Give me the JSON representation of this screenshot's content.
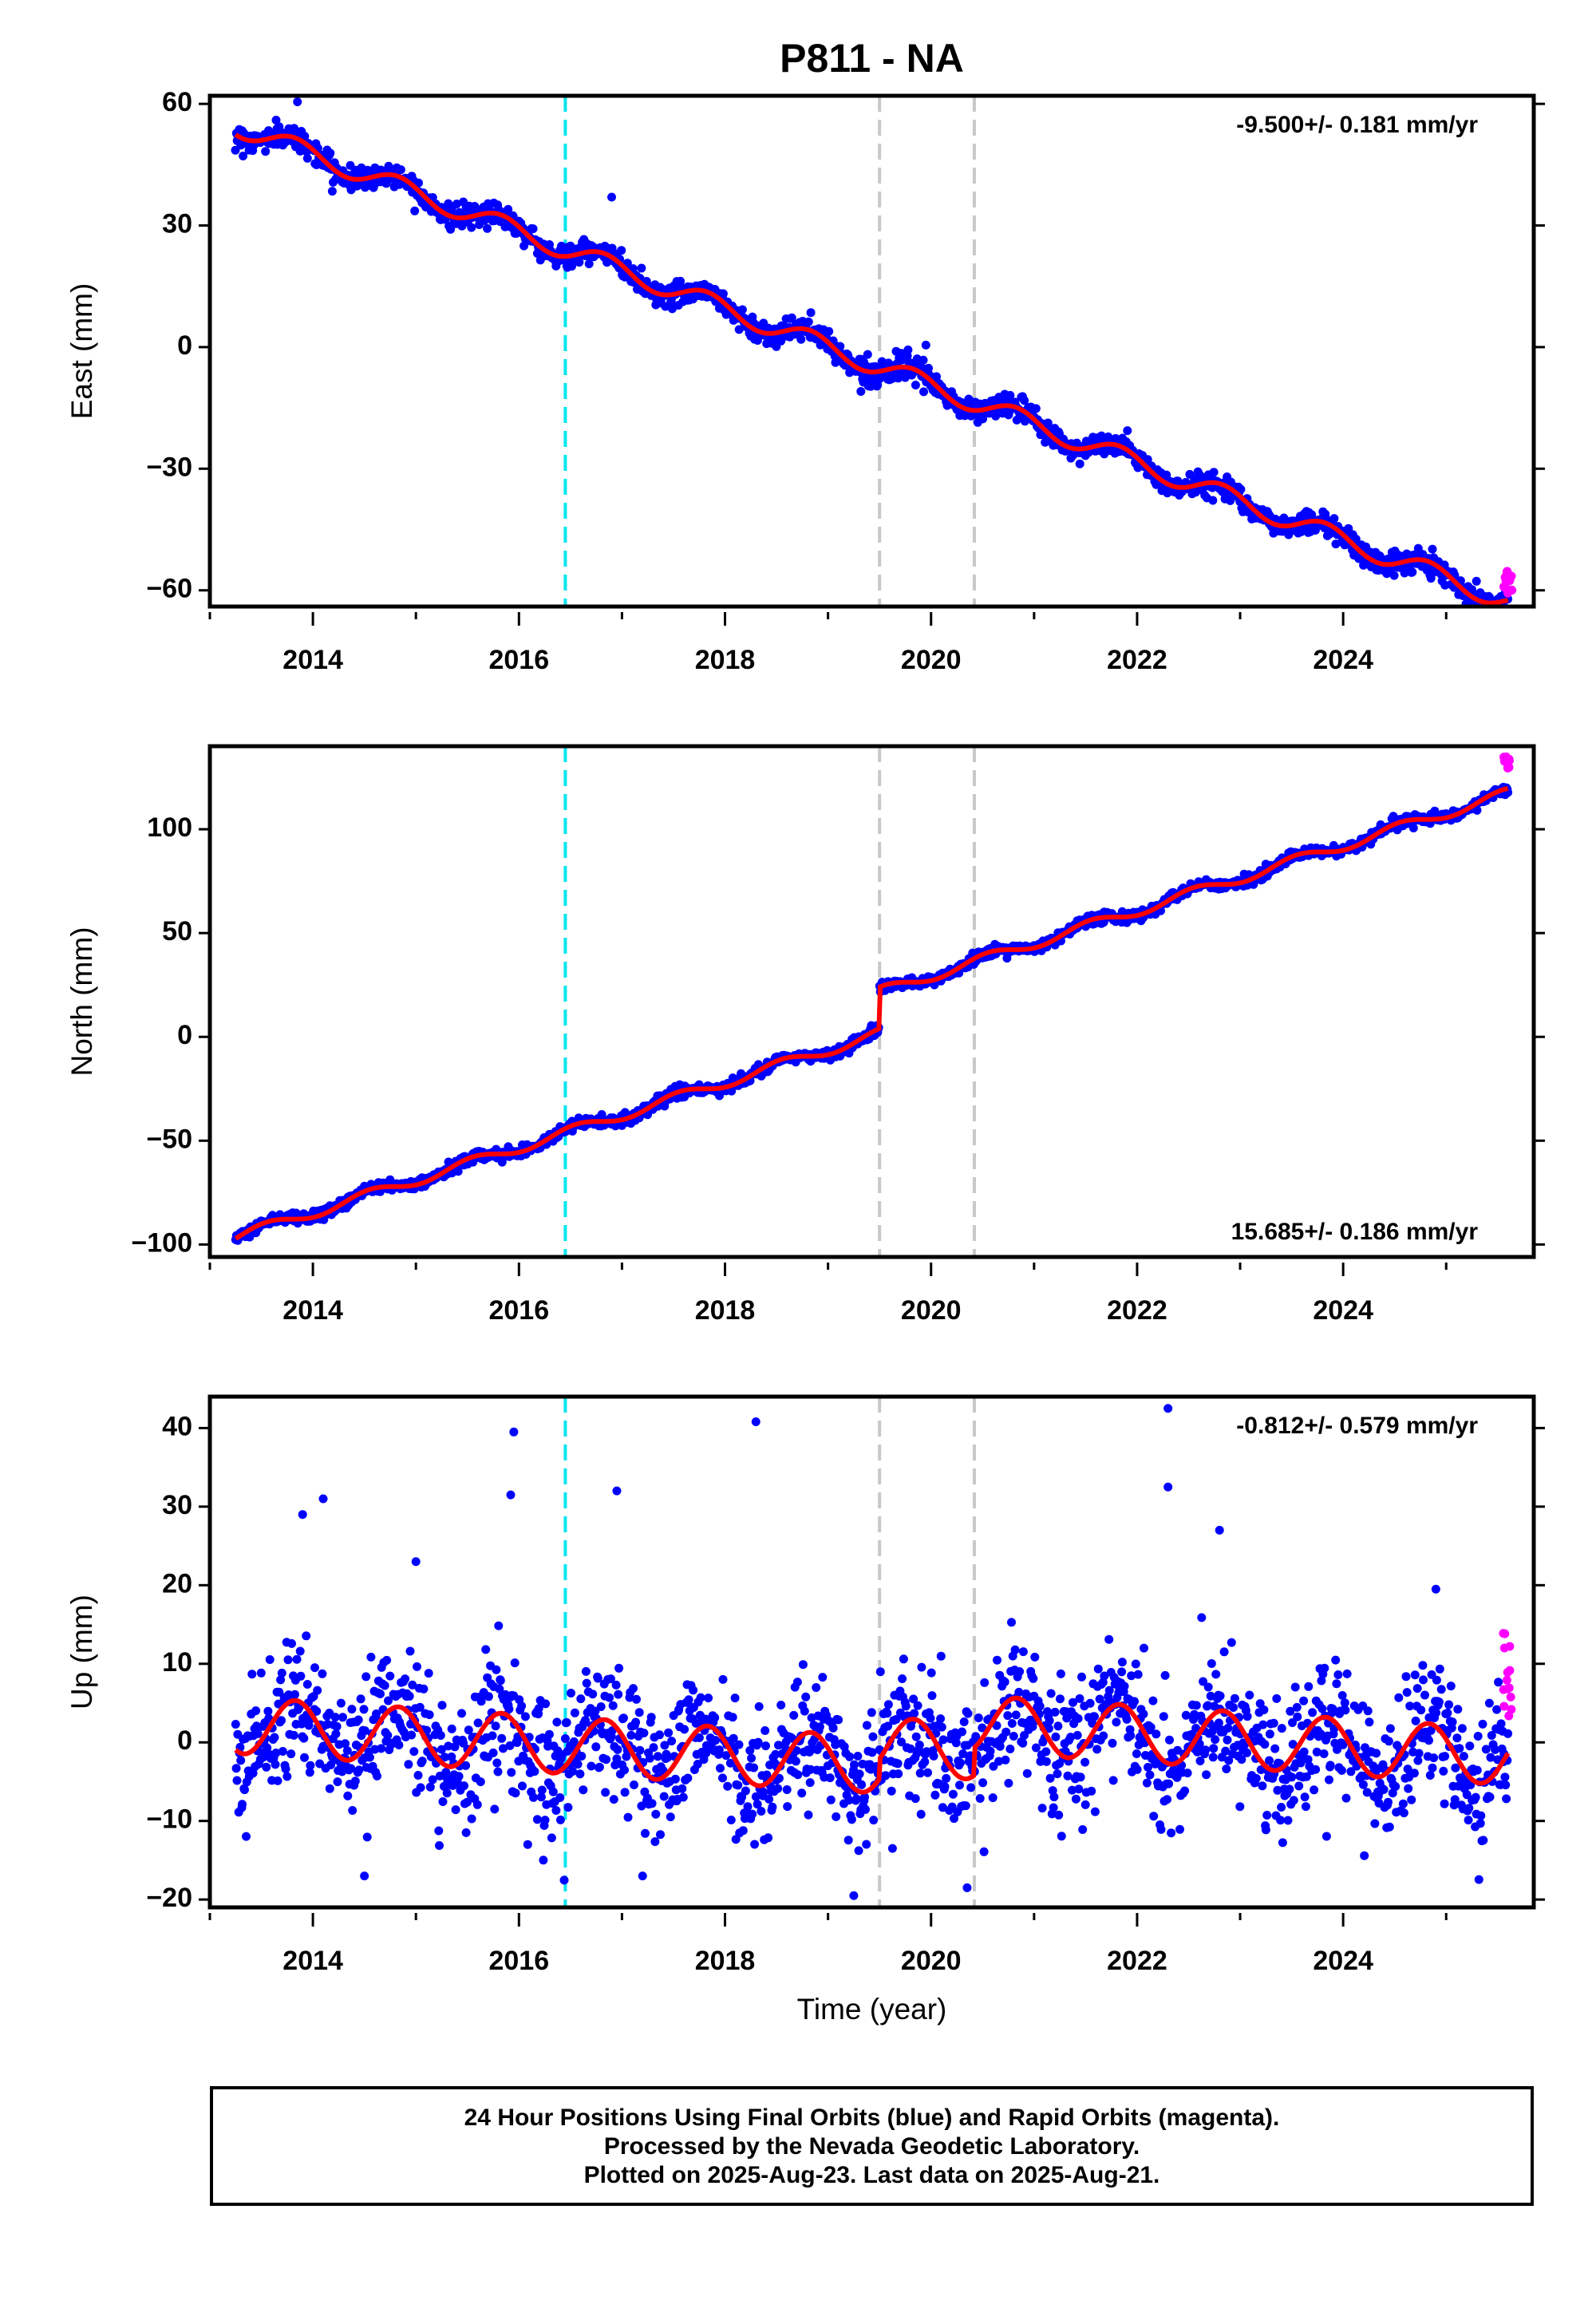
{
  "title": "P811 - NA",
  "colors": {
    "final_orbits": "#0000ff",
    "rapid_orbits": "#ff00ff",
    "model": "#ff0000",
    "event_cyan": "#00e5ee",
    "event_gray": "#c8c8c8"
  },
  "footer": {
    "line1": "24 Hour Positions Using Final Orbits (blue) and Rapid Orbits (magenta).",
    "line2": "Processed by the Nevada Geodetic Laboratory.",
    "line3": "Plotted on 2025-Aug-23. Last data on 2025-Aug-21."
  },
  "chart_data": [
    {
      "type": "scatter",
      "component": "east",
      "ylabel": "East (mm)",
      "xlabel": "",
      "rate_label": "-9.500+/- 0.181 mm/yr",
      "rate_position": "top-right",
      "xlim": [
        2013.0,
        2025.85
      ],
      "ylim": [
        -64,
        62
      ],
      "xticks": [
        2014,
        2016,
        2018,
        2020,
        2022,
        2024
      ],
      "xtick_labels": [
        "2014",
        "2016",
        "2018",
        "2020",
        "2022",
        "2024"
      ],
      "yticks": [
        60,
        30,
        0,
        -30,
        -60
      ],
      "ytick_labels": [
        "60",
        "30",
        "0",
        "−30",
        "−60"
      ],
      "grid": false,
      "events": [
        {
          "x": 2016.45,
          "color": "cyan"
        },
        {
          "x": 2019.5,
          "color": "gray"
        },
        {
          "x": 2020.42,
          "color": "gray"
        }
      ],
      "model": {
        "start": 2013.25,
        "end": 2025.6,
        "intercept_at_start": 54.6,
        "rate": -9.5,
        "annual_amplitude": 2.5,
        "annual_phase_year": 2013.83,
        "offsets": []
      },
      "scatter_sd": 1.4,
      "outliers": [
        {
          "x": 2013.85,
          "y": 60.5
        },
        {
          "x": 2016.9,
          "y": 37
        },
        {
          "x": 2019.45,
          "y": -9
        },
        {
          "x": 2019.95,
          "y": 0.5
        }
      ],
      "rapid": {
        "x_range": [
          2025.55,
          2025.64
        ],
        "y_range": [
          -61,
          -55
        ]
      }
    },
    {
      "type": "scatter",
      "component": "north",
      "ylabel": "North (mm)",
      "xlabel": "",
      "rate_label": "15.685+/- 0.186 mm/yr",
      "rate_position": "bottom-right",
      "xlim": [
        2013.0,
        2025.85
      ],
      "ylim": [
        -106,
        140
      ],
      "xticks": [
        2014,
        2016,
        2018,
        2020,
        2022,
        2024
      ],
      "xtick_labels": [
        "2014",
        "2016",
        "2018",
        "2020",
        "2022",
        "2024"
      ],
      "yticks": [
        100,
        50,
        0,
        -50,
        -100
      ],
      "ytick_labels": [
        "100",
        "50",
        "0",
        "−50",
        "−100"
      ],
      "grid": false,
      "events": [
        {
          "x": 2016.45,
          "color": "cyan"
        },
        {
          "x": 2019.5,
          "color": "gray"
        },
        {
          "x": 2020.42,
          "color": "gray"
        }
      ],
      "model": {
        "start": 2013.25,
        "end": 2025.6,
        "intercept_at_start": -96.4,
        "rate": 15.685,
        "annual_amplitude": 2.5,
        "annual_phase_year": 2013.55,
        "offsets": [
          {
            "x": 2019.5,
            "dy": 20
          }
        ]
      },
      "scatter_sd": 1.3,
      "outliers": [],
      "rapid": {
        "x_range": [
          2025.55,
          2025.64
        ],
        "y_range": [
          129,
          135
        ]
      }
    },
    {
      "type": "scatter",
      "component": "up",
      "ylabel": "Up (mm)",
      "xlabel": "Time (year)",
      "rate_label": "-0.812+/- 0.579 mm/yr",
      "rate_position": "top-right",
      "xlim": [
        2013.0,
        2025.85
      ],
      "ylim": [
        -21,
        44
      ],
      "xticks": [
        2014,
        2016,
        2018,
        2020,
        2022,
        2024
      ],
      "xtick_labels": [
        "2014",
        "2016",
        "2018",
        "2020",
        "2022",
        "2024"
      ],
      "yticks": [
        40,
        30,
        20,
        10,
        0,
        -10,
        -20
      ],
      "ytick_labels": [
        "40",
        "30",
        "20",
        "10",
        "0",
        "−10",
        "−20"
      ],
      "grid": false,
      "events": [
        {
          "x": 2016.45,
          "color": "cyan"
        },
        {
          "x": 2019.5,
          "color": "gray"
        },
        {
          "x": 2020.42,
          "color": "gray"
        }
      ],
      "model": {
        "start": 2013.25,
        "end": 2025.6,
        "intercept_at_start": 2.2,
        "rate": -0.812,
        "annual_amplitude": 3.6,
        "annual_phase_year": 2013.83,
        "offsets": [
          {
            "x": 2019.5,
            "dy": 2.5
          },
          {
            "x": 2020.42,
            "dy": 3.5
          }
        ]
      },
      "scatter_sd": 4.2,
      "outliers": [
        {
          "x": 2013.9,
          "y": 29
        },
        {
          "x": 2014.1,
          "y": 31
        },
        {
          "x": 2015.95,
          "y": 39.5
        },
        {
          "x": 2015.92,
          "y": 31.5
        },
        {
          "x": 2016.95,
          "y": 32
        },
        {
          "x": 2018.3,
          "y": 40.8
        },
        {
          "x": 2022.3,
          "y": 42.5
        },
        {
          "x": 2022.3,
          "y": 32.5
        },
        {
          "x": 2022.8,
          "y": 27
        },
        {
          "x": 2014.5,
          "y": -17
        },
        {
          "x": 2019.25,
          "y": -19.5
        },
        {
          "x": 2020.35,
          "y": -18.5
        },
        {
          "x": 2017.2,
          "y": -17
        },
        {
          "x": 2015.0,
          "y": 23
        },
        {
          "x": 2024.9,
          "y": 19.5
        }
      ],
      "rapid": {
        "x_range": [
          2025.55,
          2025.64
        ],
        "y_range": [
          3,
          15
        ]
      }
    }
  ]
}
